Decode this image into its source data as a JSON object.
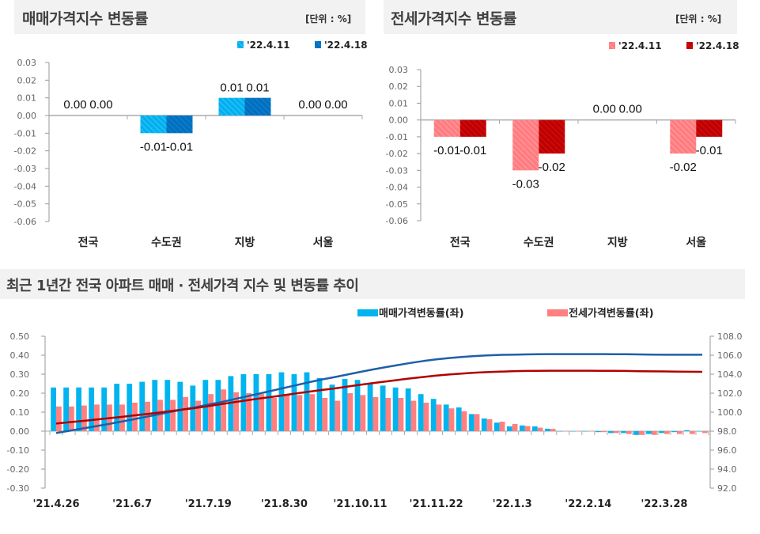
{
  "colors": {
    "sale_light": "#00b0f0",
    "sale_dark": "#0070c0",
    "jeonse_light": "#ff7c80",
    "jeonse_dark": "#c00000",
    "sale_line": "#1f5fa8",
    "jeonse_line": "#b00000",
    "sale_bar": "#00b4f0",
    "jeonse_bar": "#ff8080"
  },
  "panels": {
    "sale": {
      "title": "매매가격지수 변동률",
      "unit": "[단위 : %]"
    },
    "jeonse": {
      "title": "전세가격지수 변동률",
      "unit": "[단위 : %]"
    },
    "trend": {
      "title": "최근 1년간 전국 아파트 매매 · 전세가격 지수 및 변동률 추이"
    }
  },
  "chart_data": [
    {
      "type": "bar",
      "categories": [
        "전국",
        "수도권",
        "지방",
        "서울"
      ],
      "series": [
        {
          "name": "'22.4.11",
          "values": [
            0.0,
            -0.01,
            0.01,
            0.0
          ],
          "labels": [
            "0.00",
            "-0.01",
            "0.01",
            "0.00"
          ]
        },
        {
          "name": "'22.4.18",
          "values": [
            0.0,
            -0.01,
            0.01,
            0.0
          ],
          "labels": [
            "0.00",
            "-0.01",
            "0.01",
            "0.00"
          ]
        }
      ],
      "ylim": [
        -0.06,
        0.03
      ],
      "yticks": [
        "0.03",
        "0.02",
        "0.01",
        "0.00",
        "-0.01",
        "-0.02",
        "-0.03",
        "-0.04",
        "-0.05",
        "-0.06"
      ],
      "legend": "top-right"
    },
    {
      "type": "bar",
      "categories": [
        "전국",
        "수도권",
        "지방",
        "서울"
      ],
      "series": [
        {
          "name": "'22.4.11",
          "values": [
            -0.01,
            -0.03,
            0.0,
            -0.02
          ],
          "labels": [
            "-0.01",
            "-0.03",
            "0.00",
            "-0.02"
          ]
        },
        {
          "name": "'22.4.18",
          "values": [
            -0.01,
            -0.02,
            0.0,
            -0.01
          ],
          "labels": [
            "-0.01",
            "-0.02",
            "0.00",
            "-0.01"
          ]
        }
      ],
      "ylim": [
        -0.06,
        0.03
      ],
      "yticks": [
        "0.03",
        "0.02",
        "0.01",
        "0.00",
        "-0.01",
        "-0.02",
        "-0.03",
        "-0.04",
        "-0.05",
        "-0.06"
      ],
      "legend": "top-right"
    },
    {
      "type": "bar+line",
      "x_labels": [
        "'21.4.26",
        "'21.6.7",
        "'21.7.19",
        "'21.8.30",
        "'21.10.11",
        "'21.11.22",
        "'22.1.3",
        "'22.2.14",
        "'22.3.28"
      ],
      "ylim_left": [
        -0.3,
        0.5
      ],
      "yticks_left": [
        "0.50",
        "0.40",
        "0.30",
        "0.20",
        "0.10",
        "0.00",
        "-0.10",
        "-0.20",
        "-0.30"
      ],
      "ylim_right": [
        92.0,
        108.0
      ],
      "yticks_right": [
        "108.0",
        "106.0",
        "104.0",
        "102.0",
        "100.0",
        "98.0",
        "96.0",
        "94.0",
        "92.0"
      ],
      "legend": "top-right",
      "series": [
        {
          "name": "매매가격변동률(좌)",
          "axis": "left",
          "kind": "bar",
          "values": [
            0.23,
            0.23,
            0.23,
            0.23,
            0.23,
            0.25,
            0.25,
            0.26,
            0.27,
            0.27,
            0.26,
            0.24,
            0.27,
            0.27,
            0.29,
            0.3,
            0.3,
            0.3,
            0.31,
            0.3,
            0.31,
            0.28,
            0.245,
            0.275,
            0.27,
            0.255,
            0.24,
            0.23,
            0.225,
            0.195,
            0.17,
            0.14,
            0.125,
            0.09,
            0.067,
            0.045,
            0.025,
            0.03,
            0.025,
            0.013,
            0.0,
            0.0,
            0.0,
            -0.005,
            -0.01,
            -0.01,
            -0.02,
            -0.015,
            -0.01,
            -0.005,
            0.005,
            0.0
          ]
        },
        {
          "name": "전세가격변동률(좌)",
          "axis": "left",
          "kind": "bar",
          "values": [
            0.13,
            0.13,
            0.135,
            0.14,
            0.14,
            0.14,
            0.15,
            0.155,
            0.165,
            0.165,
            0.18,
            0.16,
            0.195,
            0.22,
            0.205,
            0.2,
            0.195,
            0.175,
            0.19,
            0.19,
            0.195,
            0.175,
            0.16,
            0.2,
            0.19,
            0.18,
            0.175,
            0.175,
            0.16,
            0.15,
            0.14,
            0.12,
            0.105,
            0.09,
            0.063,
            0.05,
            0.038,
            0.027,
            0.018,
            0.012,
            0.0,
            0.0,
            0.0,
            -0.005,
            -0.01,
            -0.015,
            -0.02,
            -0.02,
            -0.015,
            -0.015,
            -0.015,
            -0.01
          ]
        },
        {
          "axis": "right",
          "kind": "line",
          "values": [
            97.8,
            98.03,
            98.26,
            98.49,
            98.72,
            98.97,
            99.22,
            99.48,
            99.75,
            100.02,
            100.28,
            100.52,
            100.79,
            101.06,
            101.35,
            101.65,
            101.95,
            102.25,
            102.56,
            102.86,
            103.17,
            103.45,
            103.7,
            103.97,
            104.24,
            104.5,
            104.74,
            104.97,
            105.19,
            105.39,
            105.56,
            105.7,
            105.82,
            105.91,
            105.98,
            106.03,
            106.05,
            106.08,
            106.11,
            106.12,
            106.12,
            106.12,
            106.12,
            106.12,
            106.11,
            106.1,
            106.08,
            106.06,
            106.05,
            106.05,
            106.05,
            106.05
          ]
        },
        {
          "axis": "right",
          "kind": "line",
          "values": [
            98.8,
            98.93,
            99.06,
            99.2,
            99.34,
            99.48,
            99.63,
            99.78,
            99.94,
            100.1,
            100.28,
            100.44,
            100.63,
            100.84,
            101.04,
            101.24,
            101.43,
            101.6,
            101.79,
            101.98,
            102.17,
            102.34,
            102.5,
            102.7,
            102.88,
            103.06,
            103.23,
            103.4,
            103.56,
            103.71,
            103.85,
            103.97,
            104.07,
            104.16,
            104.22,
            104.27,
            104.31,
            104.34,
            104.36,
            104.37,
            104.37,
            104.37,
            104.37,
            104.36,
            104.35,
            104.34,
            104.32,
            104.3,
            104.29,
            104.27,
            104.26,
            104.25
          ]
        }
      ]
    }
  ]
}
